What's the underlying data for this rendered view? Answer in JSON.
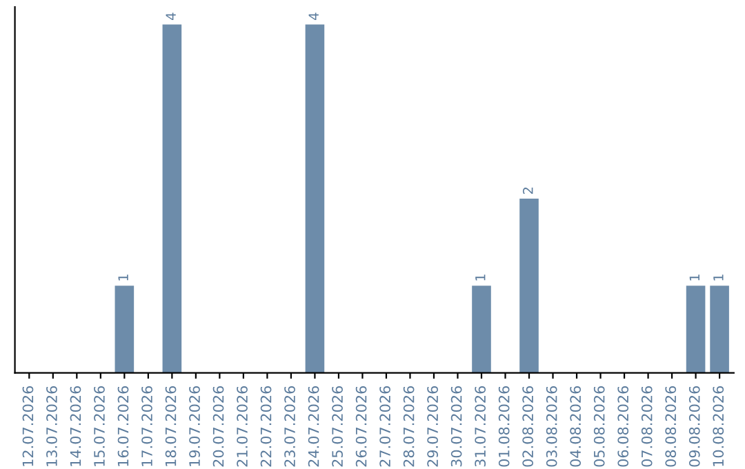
{
  "chart_data": {
    "type": "bar",
    "categories": [
      "12.07.2026",
      "13.07.2026",
      "14.07.2026",
      "15.07.2026",
      "16.07.2026",
      "17.07.2026",
      "18.07.2026",
      "19.07.2026",
      "20.07.2026",
      "21.07.2026",
      "22.07.2026",
      "23.07.2026",
      "24.07.2026",
      "25.07.2026",
      "26.07.2026",
      "27.07.2026",
      "28.07.2026",
      "29.07.2026",
      "30.07.2026",
      "31.07.2026",
      "01.08.2026",
      "02.08.2026",
      "03.08.2026",
      "04.08.2026",
      "05.08.2026",
      "06.08.2026",
      "07.08.2026",
      "08.08.2026",
      "09.08.2026",
      "10.08.2026"
    ],
    "values": [
      0,
      0,
      0,
      0,
      1,
      0,
      4,
      0,
      0,
      0,
      0,
      0,
      4,
      0,
      0,
      0,
      0,
      0,
      0,
      1,
      0,
      2,
      0,
      0,
      0,
      0,
      0,
      0,
      1,
      1
    ],
    "value_labels": [
      null,
      null,
      null,
      null,
      "1",
      null,
      "4",
      null,
      null,
      null,
      null,
      null,
      "4",
      null,
      null,
      null,
      null,
      null,
      null,
      "1",
      null,
      "2",
      null,
      null,
      null,
      null,
      null,
      null,
      "1",
      "1"
    ],
    "color": "#6d8caa",
    "tick_labels": "x",
    "grid": false,
    "legend": false
  }
}
